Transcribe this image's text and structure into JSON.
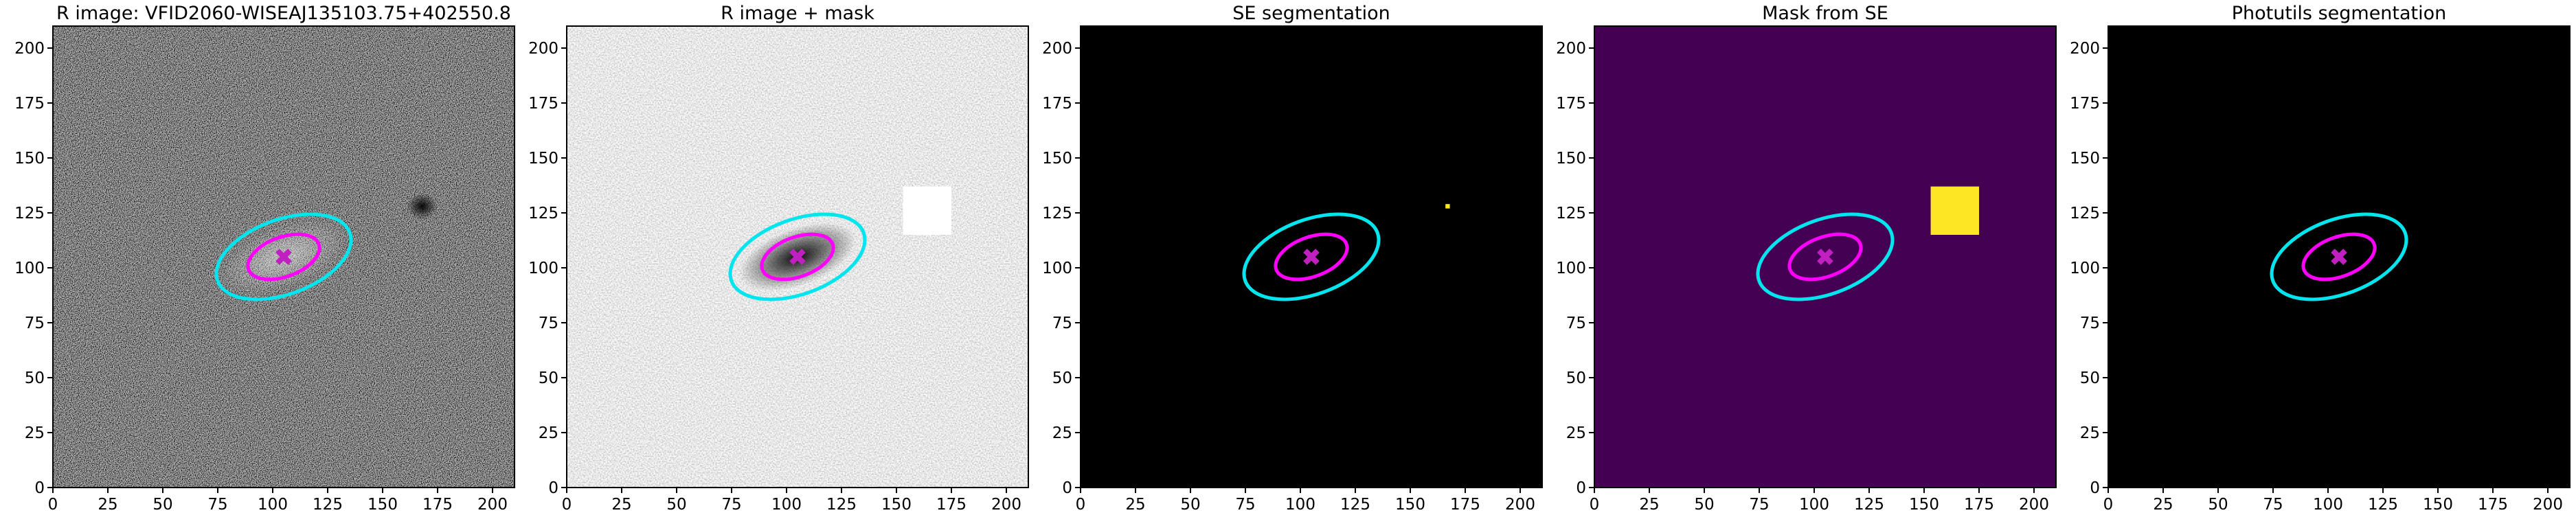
{
  "chart_data": [
    {
      "type": "image",
      "title": "R image: VFID2060-WISEAJ135103.75+402550.8",
      "colormap": "gray",
      "xlim": [
        0,
        210
      ],
      "ylim": [
        0,
        210
      ],
      "xticks": [
        0,
        25,
        50,
        75,
        100,
        125,
        150,
        175,
        200
      ],
      "yticks": [
        0,
        25,
        50,
        75,
        100,
        125,
        150,
        175,
        200
      ],
      "ellipses": [
        {
          "color": "#00e5ee",
          "cx": 105,
          "cy": 105,
          "width": 64,
          "height": 34,
          "angle": 20
        },
        {
          "color": "#ff00ff",
          "cx": 105,
          "cy": 105,
          "width": 34,
          "height": 18,
          "angle": 20
        }
      ],
      "marker": {
        "x": 105,
        "y": 105,
        "color": "#c020c0"
      }
    },
    {
      "type": "image",
      "title": "R image + mask",
      "colormap": "gray_r",
      "xlim": [
        0,
        210
      ],
      "ylim": [
        0,
        210
      ],
      "xticks": [
        0,
        25,
        50,
        75,
        100,
        125,
        150,
        175,
        200
      ],
      "yticks": [
        0,
        25,
        50,
        75,
        100,
        125,
        150,
        175,
        200
      ],
      "patches": [
        {
          "x0": 153,
          "x1": 175,
          "y0": 115,
          "y1": 137,
          "color": "#ffffff"
        }
      ],
      "ellipses": [
        {
          "color": "#00e5ee",
          "cx": 105,
          "cy": 105,
          "width": 64,
          "height": 34,
          "angle": 20
        },
        {
          "color": "#ff00ff",
          "cx": 105,
          "cy": 105,
          "width": 34,
          "height": 18,
          "angle": 20
        }
      ],
      "marker": {
        "x": 105,
        "y": 105,
        "color": "#c020c0"
      }
    },
    {
      "type": "image",
      "title": "SE segmentation",
      "background": "#000000",
      "xlim": [
        0,
        210
      ],
      "ylim": [
        0,
        210
      ],
      "xticks": [
        0,
        25,
        50,
        75,
        100,
        125,
        150,
        175,
        200
      ],
      "yticks": [
        0,
        25,
        50,
        75,
        100,
        125,
        150,
        175,
        200
      ],
      "patches": [
        {
          "x0": 166,
          "x1": 168,
          "y0": 127,
          "y1": 129,
          "color": "#fde725"
        }
      ],
      "ellipses": [
        {
          "color": "#00e5ee",
          "cx": 105,
          "cy": 105,
          "width": 64,
          "height": 34,
          "angle": 20
        },
        {
          "color": "#ff00ff",
          "cx": 105,
          "cy": 105,
          "width": 34,
          "height": 18,
          "angle": 20
        }
      ],
      "marker": {
        "x": 105,
        "y": 105,
        "color": "#c020c0"
      }
    },
    {
      "type": "image",
      "title": "Mask from SE",
      "background": "#440154",
      "xlim": [
        0,
        210
      ],
      "ylim": [
        0,
        210
      ],
      "xticks": [
        0,
        25,
        50,
        75,
        100,
        125,
        150,
        175,
        200
      ],
      "yticks": [
        0,
        25,
        50,
        75,
        100,
        125,
        150,
        175,
        200
      ],
      "patches": [
        {
          "x0": 153,
          "x1": 175,
          "y0": 115,
          "y1": 137,
          "color": "#fde725"
        }
      ],
      "ellipses": [
        {
          "color": "#00e5ee",
          "cx": 105,
          "cy": 105,
          "width": 64,
          "height": 34,
          "angle": 20
        },
        {
          "color": "#ff00ff",
          "cx": 105,
          "cy": 105,
          "width": 34,
          "height": 18,
          "angle": 20
        }
      ],
      "marker": {
        "x": 105,
        "y": 105,
        "color": "#c020c0"
      }
    },
    {
      "type": "image",
      "title": "Photutils segmentation",
      "background": "#000000",
      "xlim": [
        0,
        210
      ],
      "ylim": [
        0,
        210
      ],
      "xticks": [
        0,
        25,
        50,
        75,
        100,
        125,
        150,
        175,
        200
      ],
      "yticks": [
        0,
        25,
        50,
        75,
        100,
        125,
        150,
        175,
        200
      ],
      "ellipses": [
        {
          "color": "#00e5ee",
          "cx": 105,
          "cy": 105,
          "width": 64,
          "height": 34,
          "angle": 20
        },
        {
          "color": "#ff00ff",
          "cx": 105,
          "cy": 105,
          "width": 34,
          "height": 18,
          "angle": 20
        }
      ],
      "marker": {
        "x": 105,
        "y": 105,
        "color": "#c020c0"
      }
    }
  ]
}
